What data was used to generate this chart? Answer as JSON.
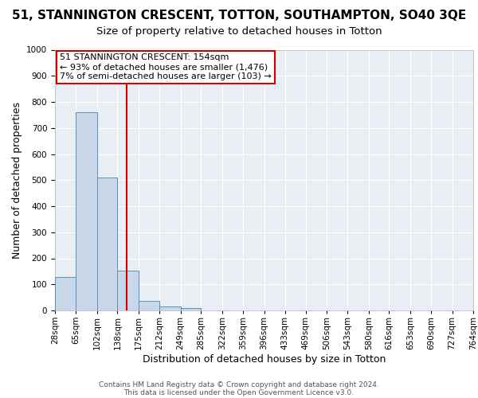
{
  "title": "51, STANNINGTON CRESCENT, TOTTON, SOUTHAMPTON, SO40 3QE",
  "subtitle": "Size of property relative to detached houses in Totton",
  "xlabel": "Distribution of detached houses by size in Totton",
  "ylabel": "Number of detached properties",
  "bin_edges": [
    28,
    65,
    102,
    138,
    175,
    212,
    249,
    285,
    322,
    359,
    396,
    433,
    469,
    506,
    543,
    580,
    616,
    653,
    690,
    727,
    764
  ],
  "bar_heights": [
    127,
    760,
    510,
    152,
    37,
    14,
    10,
    0,
    0,
    0,
    0,
    0,
    0,
    0,
    0,
    0,
    0,
    0,
    0,
    0
  ],
  "bar_color": "#c8d8e8",
  "bar_edgecolor": "#5a8fc0",
  "red_line_x": 154,
  "annotation_line1": "51 STANNINGTON CRESCENT: 154sqm",
  "annotation_line2": "← 93% of detached houses are smaller (1,476)",
  "annotation_line3": "7% of semi-detached houses are larger (103) →",
  "annotation_box_color": "#cc0000",
  "ylim": [
    0,
    1000
  ],
  "yticks": [
    0,
    100,
    200,
    300,
    400,
    500,
    600,
    700,
    800,
    900,
    1000
  ],
  "footer1": "Contains HM Land Registry data © Crown copyright and database right 2024.",
  "footer2": "This data is licensed under the Open Government Licence v3.0.",
  "background_color": "#e8eef4",
  "title_fontsize": 11,
  "subtitle_fontsize": 9.5,
  "xlabel_fontsize": 9,
  "ylabel_fontsize": 9,
  "tick_fontsize": 7.5,
  "annotation_fontsize": 8,
  "footer_fontsize": 6.5
}
